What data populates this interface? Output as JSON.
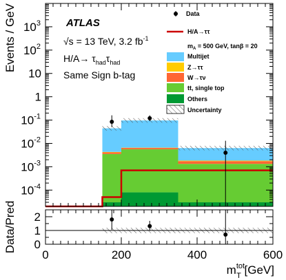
{
  "chart_data": {
    "type": "bar",
    "stacked": true,
    "x_bins": [
      [
        0,
        150
      ],
      [
        150,
        200
      ],
      [
        200,
        350
      ],
      [
        350,
        600
      ]
    ],
    "x_ticks": [
      "0",
      "200",
      "400",
      "600"
    ],
    "xlim": [
      0,
      600
    ],
    "xlabel_main": "m",
    "xlabel_sub": "T",
    "xlabel_sup": "tot",
    "xlabel_unit": " [GeV]",
    "ylabel": "Events / GeV",
    "y_scale": "log",
    "ylim": [
      2e-05,
      10000
    ],
    "y_ticks": [
      {
        "value": 0.0001,
        "mant": "10",
        "exp": "-4"
      },
      {
        "value": 0.001,
        "mant": "10",
        "exp": "-3"
      },
      {
        "value": 0.01,
        "mant": "10",
        "exp": "-2"
      },
      {
        "value": 0.1,
        "mant": "10",
        "exp": "-1"
      },
      {
        "value": 1,
        "mant": "1",
        "exp": ""
      },
      {
        "value": 10,
        "mant": "10",
        "exp": ""
      },
      {
        "value": 100,
        "mant": "10",
        "exp": "2"
      },
      {
        "value": 1000,
        "mant": "10",
        "exp": "3"
      }
    ],
    "series": [
      {
        "name": "Others",
        "color": "#009933",
        "values": [
          0,
          3e-05,
          8e-05,
          3e-05
        ]
      },
      {
        "name": "tt, single top",
        "color": "#66cc33",
        "values": [
          0,
          0.0035,
          0.0055,
          0.0013
        ]
      },
      {
        "name": "W→τν",
        "color": "#ff6633",
        "values": [
          0,
          0.0006,
          0.0008,
          0.0004
        ]
      },
      {
        "name": "Z→ττ",
        "color": "#ffcc00",
        "values": [
          0,
          0.0002,
          0.0002,
          0.0001
        ]
      },
      {
        "name": "Multijet",
        "color": "#66ccff",
        "values": [
          0,
          0.04,
          0.09,
          0.0045
        ]
      }
    ],
    "signal": {
      "name": "H/A→ττ",
      "color": "#cc0000",
      "values": [
        2e-05,
        5e-05,
        0.0007,
        0.0007
      ]
    },
    "data_points": [
      {
        "x": 175,
        "y": 0.085,
        "ylo": 0.05,
        "yhi": 0.16
      },
      {
        "x": 275,
        "y": 0.12,
        "ylo": 0.09,
        "yhi": 0.16
      },
      {
        "x": 475,
        "y": 0.004,
        "ylo": 2e-05,
        "yhi": 0.013
      }
    ],
    "ratio": {
      "ylabel": "Data/Pred",
      "ylim": [
        0,
        2.5
      ],
      "y_ticks": [
        "0",
        "1",
        "2"
      ],
      "points": [
        {
          "x": 175,
          "y": 1.8,
          "ylo": 1.05,
          "yhi": 2.5
        },
        {
          "x": 275,
          "y": 1.32,
          "ylo": 1.0,
          "yhi": 1.7
        },
        {
          "x": 475,
          "y": 0.7,
          "ylo": 0.0,
          "yhi": 2.5
        }
      ]
    }
  },
  "annotations": {
    "atlas": "ATLAS",
    "sqrt": "√s",
    "energy": " = 13 TeV, 3.2 fb",
    "energy_sup": "-1",
    "channel_main": "H/A→ τ",
    "channel_sub1": "had",
    "channel_tau": "τ",
    "channel_sub2": "had",
    "selection": "Same Sign b-tag"
  },
  "legend": {
    "data": "Data",
    "signal": "H/A→ττ",
    "signal_params": "m",
    "signal_params_sub": "A",
    "signal_params_rest": " = 500 GeV, tanβ = 20",
    "multijet": "Multijet",
    "ztt": "Z→ττ",
    "wtn": "W→τν",
    "ttbar": "tt, single top",
    "others": "Others",
    "uncertainty": "Uncertainty"
  }
}
